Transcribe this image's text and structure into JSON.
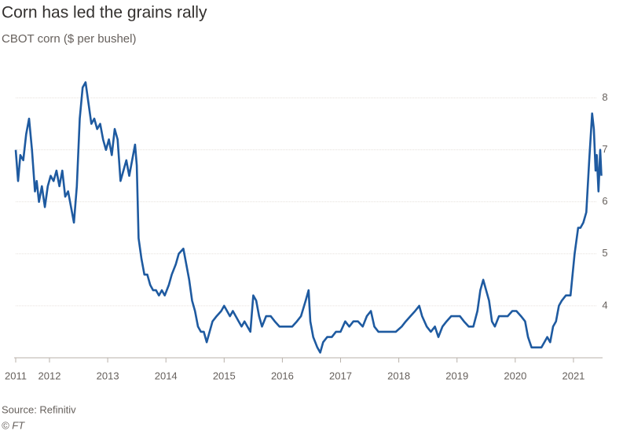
{
  "chart_data": {
    "type": "line",
    "title": "Corn has led the grains rally",
    "subtitle": "CBOT corn ($ per bushel)",
    "source": "Source: Refinitiv",
    "credit": "© FT",
    "color": "#1e5aa0",
    "grid": true,
    "xlim": [
      2011.42,
      2021.5
    ],
    "ylim": [
      3,
      8.4
    ],
    "yticks": [
      4,
      5,
      6,
      7,
      8
    ],
    "xticks": [
      {
        "value": 2011.42,
        "label": "2011"
      },
      2012,
      2013,
      2014,
      2015,
      2016,
      2017,
      2018,
      2019,
      2020,
      2021
    ],
    "x": [
      2011.42,
      2011.46,
      2011.5,
      2011.55,
      2011.6,
      2011.65,
      2011.7,
      2011.75,
      2011.78,
      2011.82,
      2011.87,
      2011.92,
      2011.97,
      2012.02,
      2012.07,
      2012.12,
      2012.17,
      2012.22,
      2012.27,
      2012.32,
      2012.37,
      2012.42,
      2012.47,
      2012.52,
      2012.57,
      2012.62,
      2012.67,
      2012.72,
      2012.77,
      2012.82,
      2012.87,
      2012.92,
      2012.97,
      2013.02,
      2013.07,
      2013.12,
      2013.17,
      2013.22,
      2013.27,
      2013.32,
      2013.37,
      2013.42,
      2013.47,
      2013.5,
      2013.53,
      2013.58,
      2013.63,
      2013.68,
      2013.73,
      2013.78,
      2013.83,
      2013.88,
      2013.93,
      2013.98,
      2014.05,
      2014.1,
      2014.17,
      2014.22,
      2014.3,
      2014.35,
      2014.4,
      2014.45,
      2014.5,
      2014.55,
      2014.6,
      2014.65,
      2014.7,
      2014.75,
      2014.8,
      2014.87,
      2014.95,
      2015.0,
      2015.05,
      2015.1,
      2015.15,
      2015.2,
      2015.25,
      2015.3,
      2015.35,
      2015.4,
      2015.45,
      2015.5,
      2015.55,
      2015.6,
      2015.65,
      2015.72,
      2015.8,
      2015.87,
      2015.95,
      2016.02,
      2016.1,
      2016.17,
      2016.25,
      2016.32,
      2016.4,
      2016.45,
      2016.48,
      2016.53,
      2016.6,
      2016.65,
      2016.7,
      2016.77,
      2016.85,
      2016.92,
      2017.0,
      2017.08,
      2017.15,
      2017.22,
      2017.3,
      2017.38,
      2017.45,
      2017.52,
      2017.58,
      2017.65,
      2017.72,
      2017.8,
      2017.88,
      2017.95,
      2018.05,
      2018.12,
      2018.2,
      2018.28,
      2018.35,
      2018.4,
      2018.48,
      2018.55,
      2018.62,
      2018.68,
      2018.75,
      2018.82,
      2018.9,
      2018.97,
      2019.05,
      2019.12,
      2019.2,
      2019.28,
      2019.35,
      2019.4,
      2019.45,
      2019.5,
      2019.55,
      2019.6,
      2019.65,
      2019.72,
      2019.8,
      2019.87,
      2019.95,
      2020.02,
      2020.1,
      2020.17,
      2020.22,
      2020.28,
      2020.33,
      2020.4,
      2020.45,
      2020.5,
      2020.55,
      2020.6,
      2020.65,
      2020.7,
      2020.75,
      2020.8,
      2020.87,
      2020.95,
      2021.02,
      2021.08,
      2021.12,
      2021.17,
      2021.22,
      2021.27,
      2021.32,
      2021.35,
      2021.38,
      2021.4,
      2021.43,
      2021.46,
      2021.48
    ],
    "values": [
      7.0,
      6.4,
      6.9,
      6.8,
      7.3,
      7.6,
      7.0,
      6.2,
      6.4,
      6.0,
      6.3,
      5.9,
      6.3,
      6.5,
      6.4,
      6.6,
      6.3,
      6.6,
      6.1,
      6.2,
      5.9,
      5.6,
      6.3,
      7.6,
      8.2,
      8.3,
      7.9,
      7.5,
      7.6,
      7.4,
      7.5,
      7.2,
      7.0,
      7.2,
      6.9,
      7.4,
      7.2,
      6.4,
      6.6,
      6.8,
      6.5,
      6.8,
      7.1,
      6.7,
      5.3,
      4.9,
      4.6,
      4.6,
      4.4,
      4.3,
      4.3,
      4.2,
      4.3,
      4.2,
      4.4,
      4.6,
      4.8,
      5.0,
      5.1,
      4.8,
      4.5,
      4.1,
      3.9,
      3.6,
      3.5,
      3.5,
      3.3,
      3.5,
      3.7,
      3.8,
      3.9,
      4.0,
      3.9,
      3.8,
      3.9,
      3.8,
      3.7,
      3.6,
      3.7,
      3.6,
      3.5,
      4.2,
      4.1,
      3.8,
      3.6,
      3.8,
      3.8,
      3.7,
      3.6,
      3.6,
      3.6,
      3.6,
      3.7,
      3.8,
      4.1,
      4.3,
      3.7,
      3.4,
      3.2,
      3.1,
      3.3,
      3.4,
      3.4,
      3.5,
      3.5,
      3.7,
      3.6,
      3.7,
      3.7,
      3.6,
      3.8,
      3.9,
      3.6,
      3.5,
      3.5,
      3.5,
      3.5,
      3.5,
      3.6,
      3.7,
      3.8,
      3.9,
      4.0,
      3.8,
      3.6,
      3.5,
      3.6,
      3.4,
      3.6,
      3.7,
      3.8,
      3.8,
      3.8,
      3.7,
      3.6,
      3.6,
      3.9,
      4.3,
      4.5,
      4.3,
      4.1,
      3.7,
      3.6,
      3.8,
      3.8,
      3.8,
      3.9,
      3.9,
      3.8,
      3.7,
      3.4,
      3.2,
      3.2,
      3.2,
      3.2,
      3.3,
      3.4,
      3.3,
      3.6,
      3.7,
      4.0,
      4.1,
      4.2,
      4.2,
      5.0,
      5.5,
      5.5,
      5.6,
      5.8,
      6.8,
      7.7,
      7.4,
      6.6,
      6.9,
      6.2,
      7.0,
      6.5
    ]
  }
}
